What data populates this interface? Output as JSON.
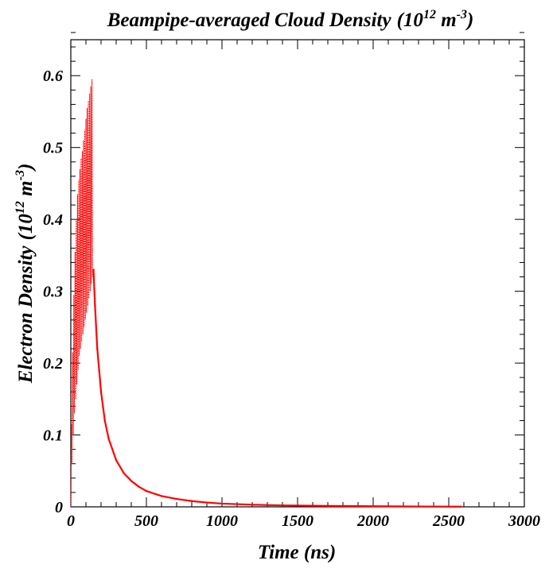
{
  "chart_data": {
    "type": "line",
    "title": "Beampipe-averaged Cloud Density",
    "title_unit": {
      "prefix": "(10",
      "exp1": "12",
      "mid": " m",
      "exp2": "-3",
      "suffix": ")"
    },
    "xlabel": "Time (ns)",
    "ylabel": "Electron Density",
    "ylabel_unit": {
      "prefix": "(10",
      "exp1": "12",
      "mid": " m",
      "exp2": "-3",
      "suffix": ")"
    },
    "xlim": [
      0,
      3000
    ],
    "ylim": [
      0,
      0.65
    ],
    "x_ticks": [
      0,
      500,
      1000,
      1500,
      2000,
      2500,
      3000
    ],
    "x_tick_labels": [
      "0",
      "500",
      "1000",
      "1500",
      "2000",
      "2500",
      "3000"
    ],
    "y_ticks": [
      0,
      0.1,
      0.2,
      0.3,
      0.4,
      0.5,
      0.6
    ],
    "y_tick_labels": [
      "0",
      "0.1",
      "0.2",
      "0.3",
      "0.4",
      "0.5",
      "0.6"
    ],
    "grid": false,
    "line_color": "#ff0000",
    "peak_envelope": {
      "x": [
        0,
        8,
        16,
        24,
        32,
        40,
        48,
        56,
        64,
        72,
        80,
        88,
        96,
        104,
        112,
        120,
        128,
        136,
        144
      ],
      "y": [
        0.06,
        0.17,
        0.26,
        0.33,
        0.38,
        0.42,
        0.45,
        0.46,
        0.48,
        0.49,
        0.5,
        0.52,
        0.53,
        0.55,
        0.56,
        0.57,
        0.58,
        0.59,
        0.6
      ]
    },
    "trough_envelope": {
      "x": [
        0,
        8,
        16,
        24,
        32,
        40,
        48,
        56,
        64,
        72,
        80,
        88,
        96,
        104,
        112,
        120,
        128,
        136,
        144
      ],
      "y": [
        0.0,
        0.06,
        0.1,
        0.13,
        0.15,
        0.17,
        0.19,
        0.21,
        0.22,
        0.23,
        0.24,
        0.25,
        0.26,
        0.27,
        0.28,
        0.29,
        0.3,
        0.31,
        0.32
      ]
    },
    "series": [
      {
        "x": [
          150,
          160,
          175,
          200,
          225,
          250,
          300,
          350,
          400,
          450,
          500,
          600,
          700,
          800,
          900,
          1000,
          1200,
          1400,
          1700,
          2000,
          2300,
          2580
        ],
        "y": [
          0.33,
          0.28,
          0.22,
          0.16,
          0.12,
          0.095,
          0.065,
          0.047,
          0.036,
          0.028,
          0.022,
          0.015,
          0.011,
          0.008,
          0.006,
          0.0045,
          0.003,
          0.002,
          0.0013,
          0.0008,
          0.0005,
          0.0003
        ]
      }
    ]
  }
}
